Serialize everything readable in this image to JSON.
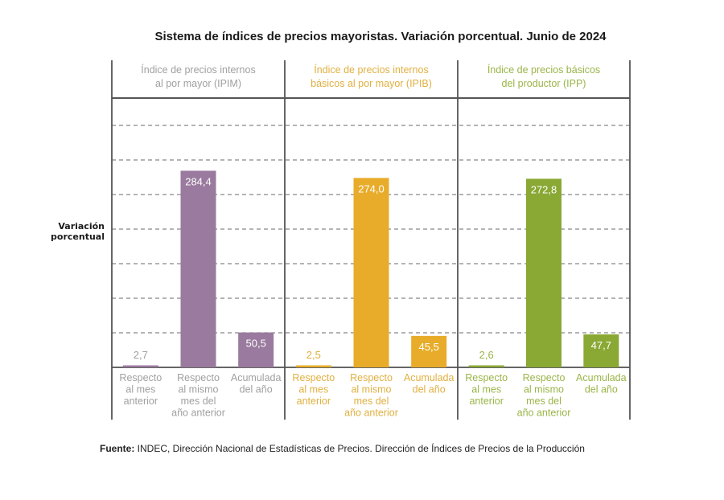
{
  "chart_data": {
    "type": "bar",
    "title": "Sistema de índices de precios mayoristas. Variación porcentual. Junio de 2024",
    "ylabel": [
      "Variación",
      "porcentual"
    ],
    "xlabel": "",
    "ylim": [
      0,
      400
    ],
    "grid": true,
    "gridlines": [
      50,
      100,
      150,
      200,
      250,
      300,
      350
    ],
    "panels": [
      {
        "name": "IPIM",
        "title": [
          "Índice de precios internos",
          "al por mayor (IPIM)"
        ],
        "color": "#9a7a9e",
        "label_color": "#a0a0a0",
        "categories": [
          [
            "Respecto",
            "al mes",
            "anterior"
          ],
          [
            "Respecto",
            "al mismo",
            "mes del",
            "año anterior"
          ],
          [
            "Acumulada",
            "del año"
          ]
        ],
        "values": [
          2.7,
          284.4,
          50.5
        ],
        "value_labels": [
          "2,7",
          "284,4",
          "50,5"
        ]
      },
      {
        "name": "IPIB",
        "title": [
          "Índice de precios internos",
          "básicos al por mayor (IPIB)"
        ],
        "color": "#e8ac2a",
        "label_color": "#e0b040",
        "categories": [
          [
            "Respecto",
            "al mes",
            "anterior"
          ],
          [
            "Respecto",
            "al mismo",
            "mes del",
            "año anterior"
          ],
          [
            "Acumulada",
            "del año"
          ]
        ],
        "values": [
          2.5,
          274.0,
          45.5
        ],
        "value_labels": [
          "2,5",
          "274,0",
          "45,5"
        ]
      },
      {
        "name": "IPP",
        "title": [
          "Índice de precios básicos",
          "del productor (IPP)"
        ],
        "color": "#8aa834",
        "label_color": "#9ab548",
        "categories": [
          [
            "Respecto",
            "al mes",
            "anterior"
          ],
          [
            "Respecto",
            "al mismo",
            "mes del",
            "año anterior"
          ],
          [
            "Acumulada",
            "del año"
          ]
        ],
        "values": [
          2.6,
          272.8,
          47.7
        ],
        "value_labels": [
          "2,6",
          "272,8",
          "47,7"
        ]
      }
    ],
    "source_label": "Fuente:",
    "source_text": " INDEC, Dirección Nacional de Estadísticas de Precios. Dirección de Índices de Precios de la Producción"
  }
}
